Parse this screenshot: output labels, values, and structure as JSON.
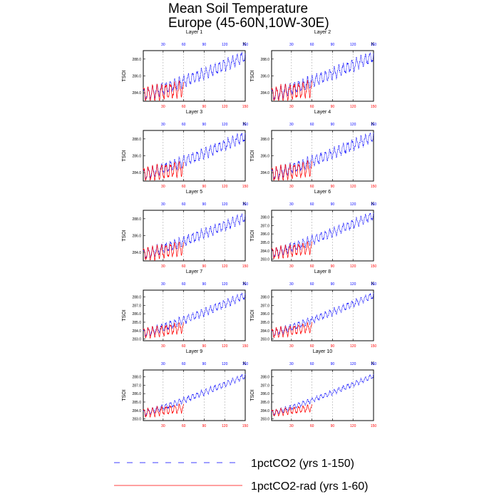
{
  "title_lines": [
    "Mean Soil Temperature",
    "Europe (45-60N,10W-30E)"
  ],
  "colors": {
    "series_1pctCO2": "#0000ff",
    "series_1pctCO2_rad": "#ff0000",
    "axes": "#000000",
    "grid": "#999999"
  },
  "legend": {
    "items": [
      {
        "label": "1pctCO2 (yrs 1-150)",
        "color": "#0000ff",
        "style": "dashed"
      },
      {
        "label": "1pctCO2-rad (yrs 1-60)",
        "color": "#ff0000",
        "style": "solid"
      }
    ]
  },
  "chart_data": [
    {
      "type": "line",
      "title": "Layer 1",
      "unit_label": "K",
      "ylabel": "TSOI",
      "top_axis_ticks": [
        "30",
        "60",
        "90",
        "120",
        "150"
      ],
      "bottom_axis_ticks": [
        "30",
        "60",
        "90",
        "120",
        "150"
      ],
      "yticks": [
        "284.0",
        "286.0",
        "288.0"
      ],
      "ylim": [
        283.0,
        289.0
      ],
      "xlim": [
        1,
        150
      ],
      "series": [
        {
          "name": "1pctCO2 (yrs 1-150)",
          "x_range": [
            1,
            150
          ],
          "trend": [
            283.8,
            288.3
          ],
          "seasonal_amplitude": 0.6
        },
        {
          "name": "1pctCO2-rad (yrs 1-60)",
          "x_range": [
            1,
            60
          ],
          "trend": [
            283.8,
            284.5
          ],
          "seasonal_amplitude": 0.8
        }
      ]
    },
    {
      "type": "line",
      "title": "Layer 2",
      "unit_label": "K",
      "ylabel": "TSOI",
      "top_axis_ticks": [
        "30",
        "60",
        "90",
        "120",
        "150"
      ],
      "bottom_axis_ticks": [
        "30",
        "60",
        "90",
        "120",
        "150"
      ],
      "yticks": [
        "284.0",
        "286.0",
        "288.0"
      ],
      "ylim": [
        283.0,
        289.0
      ],
      "xlim": [
        1,
        150
      ],
      "series": [
        {
          "name": "1pctCO2 (yrs 1-150)",
          "x_range": [
            1,
            150
          ],
          "trend": [
            283.8,
            288.3
          ],
          "seasonal_amplitude": 0.6
        },
        {
          "name": "1pctCO2-rad (yrs 1-60)",
          "x_range": [
            1,
            60
          ],
          "trend": [
            283.8,
            284.5
          ],
          "seasonal_amplitude": 0.8
        }
      ]
    },
    {
      "type": "line",
      "title": "Layer 3",
      "unit_label": "K",
      "ylabel": "TSOI",
      "top_axis_ticks": [
        "30",
        "60",
        "90",
        "120",
        "150"
      ],
      "bottom_axis_ticks": [
        "30",
        "60",
        "90",
        "120",
        "150"
      ],
      "yticks": [
        "284.0",
        "286.0",
        "288.0"
      ],
      "ylim": [
        283.0,
        289.0
      ],
      "xlim": [
        1,
        150
      ],
      "series": [
        {
          "name": "1pctCO2 (yrs 1-150)",
          "x_range": [
            1,
            150
          ],
          "trend": [
            283.8,
            288.3
          ],
          "seasonal_amplitude": 0.55
        },
        {
          "name": "1pctCO2-rad (yrs 1-60)",
          "x_range": [
            1,
            60
          ],
          "trend": [
            283.8,
            284.5
          ],
          "seasonal_amplitude": 0.75
        }
      ]
    },
    {
      "type": "line",
      "title": "Layer 4",
      "unit_label": "K",
      "ylabel": "TSOI",
      "top_axis_ticks": [
        "30",
        "60",
        "90",
        "120",
        "150"
      ],
      "bottom_axis_ticks": [
        "30",
        "60",
        "90",
        "120",
        "150"
      ],
      "yticks": [
        "284.0",
        "286.0",
        "288.0"
      ],
      "ylim": [
        283.0,
        289.0
      ],
      "xlim": [
        1,
        150
      ],
      "series": [
        {
          "name": "1pctCO2 (yrs 1-150)",
          "x_range": [
            1,
            150
          ],
          "trend": [
            283.8,
            288.3
          ],
          "seasonal_amplitude": 0.55
        },
        {
          "name": "1pctCO2-rad (yrs 1-60)",
          "x_range": [
            1,
            60
          ],
          "trend": [
            283.8,
            284.5
          ],
          "seasonal_amplitude": 0.75
        }
      ]
    },
    {
      "type": "line",
      "title": "Layer 5",
      "unit_label": "K",
      "ylabel": "TSOI",
      "top_axis_ticks": [
        "30",
        "60",
        "90",
        "120",
        "150"
      ],
      "bottom_axis_ticks": [
        "30",
        "60",
        "90",
        "120",
        "150"
      ],
      "yticks": [
        "284.0",
        "286.0",
        "288.0"
      ],
      "ylim": [
        283.0,
        289.0
      ],
      "xlim": [
        1,
        150
      ],
      "series": [
        {
          "name": "1pctCO2 (yrs 1-150)",
          "x_range": [
            1,
            150
          ],
          "trend": [
            283.8,
            288.2
          ],
          "seasonal_amplitude": 0.5
        },
        {
          "name": "1pctCO2-rad (yrs 1-60)",
          "x_range": [
            1,
            60
          ],
          "trend": [
            283.8,
            284.5
          ],
          "seasonal_amplitude": 0.7
        }
      ]
    },
    {
      "type": "line",
      "title": "Layer 6",
      "unit_label": "K",
      "ylabel": "TSOI",
      "top_axis_ticks": [
        "30",
        "60",
        "90",
        "120",
        "150"
      ],
      "bottom_axis_ticks": [
        "30",
        "60",
        "90",
        "120",
        "150"
      ],
      "yticks": [
        "283.0",
        "284.0",
        "285.0",
        "286.0",
        "287.0",
        "288.0"
      ],
      "ylim": [
        282.8,
        288.8
      ],
      "xlim": [
        1,
        150
      ],
      "series": [
        {
          "name": "1pctCO2 (yrs 1-150)",
          "x_range": [
            1,
            150
          ],
          "trend": [
            283.7,
            288.2
          ],
          "seasonal_amplitude": 0.45
        },
        {
          "name": "1pctCO2-rad (yrs 1-60)",
          "x_range": [
            1,
            60
          ],
          "trend": [
            283.7,
            284.4
          ],
          "seasonal_amplitude": 0.6
        }
      ]
    },
    {
      "type": "line",
      "title": "Layer 7",
      "unit_label": "K",
      "ylabel": "TSOI",
      "top_axis_ticks": [
        "30",
        "60",
        "90",
        "120",
        "150"
      ],
      "bottom_axis_ticks": [
        "30",
        "60",
        "90",
        "120",
        "150"
      ],
      "yticks": [
        "283.0",
        "284.0",
        "285.0",
        "286.0",
        "287.0",
        "288.0"
      ],
      "ylim": [
        282.8,
        288.8
      ],
      "xlim": [
        1,
        150
      ],
      "series": [
        {
          "name": "1pctCO2 (yrs 1-150)",
          "x_range": [
            1,
            150
          ],
          "trend": [
            283.7,
            288.2
          ],
          "seasonal_amplitude": 0.4
        },
        {
          "name": "1pctCO2-rad (yrs 1-60)",
          "x_range": [
            1,
            60
          ],
          "trend": [
            283.7,
            284.4
          ],
          "seasonal_amplitude": 0.55
        }
      ]
    },
    {
      "type": "line",
      "title": "Layer 8",
      "unit_label": "K",
      "ylabel": "TSOI",
      "top_axis_ticks": [
        "30",
        "60",
        "90",
        "120",
        "150"
      ],
      "bottom_axis_ticks": [
        "30",
        "60",
        "90",
        "120",
        "150"
      ],
      "yticks": [
        "283.0",
        "284.0",
        "285.0",
        "286.0",
        "287.0",
        "288.0"
      ],
      "ylim": [
        282.8,
        288.8
      ],
      "xlim": [
        1,
        150
      ],
      "series": [
        {
          "name": "1pctCO2 (yrs 1-150)",
          "x_range": [
            1,
            150
          ],
          "trend": [
            283.7,
            288.2
          ],
          "seasonal_amplitude": 0.35
        },
        {
          "name": "1pctCO2-rad (yrs 1-60)",
          "x_range": [
            1,
            60
          ],
          "trend": [
            283.7,
            284.4
          ],
          "seasonal_amplitude": 0.5
        }
      ]
    },
    {
      "type": "line",
      "title": "Layer 9",
      "unit_label": "K",
      "ylabel": "TSOI",
      "top_axis_ticks": [
        "30",
        "60",
        "90",
        "120",
        "150"
      ],
      "bottom_axis_ticks": [
        "30",
        "60",
        "90",
        "120",
        "150"
      ],
      "yticks": [
        "283.0",
        "284.0",
        "285.0",
        "286.0",
        "287.0",
        "288.0"
      ],
      "ylim": [
        282.8,
        288.8
      ],
      "xlim": [
        1,
        150
      ],
      "series": [
        {
          "name": "1pctCO2 (yrs 1-150)",
          "x_range": [
            1,
            150
          ],
          "trend": [
            283.7,
            288.1
          ],
          "seasonal_amplitude": 0.3
        },
        {
          "name": "1pctCO2-rad (yrs 1-60)",
          "x_range": [
            1,
            60
          ],
          "trend": [
            283.7,
            284.3
          ],
          "seasonal_amplitude": 0.45
        }
      ]
    },
    {
      "type": "line",
      "title": "Layer 10",
      "unit_label": "K",
      "ylabel": "TSOI",
      "top_axis_ticks": [
        "30",
        "60",
        "90",
        "120",
        "150"
      ],
      "bottom_axis_ticks": [
        "30",
        "60",
        "90",
        "120",
        "150"
      ],
      "yticks": [
        "283.0",
        "284.0",
        "285.0",
        "286.0",
        "287.0",
        "288.0"
      ],
      "ylim": [
        282.8,
        288.8
      ],
      "xlim": [
        1,
        150
      ],
      "series": [
        {
          "name": "1pctCO2 (yrs 1-150)",
          "x_range": [
            1,
            150
          ],
          "trend": [
            283.7,
            288.1
          ],
          "seasonal_amplitude": 0.25
        },
        {
          "name": "1pctCO2-rad (yrs 1-60)",
          "x_range": [
            1,
            60
          ],
          "trend": [
            283.7,
            284.3
          ],
          "seasonal_amplitude": 0.35
        }
      ]
    }
  ]
}
